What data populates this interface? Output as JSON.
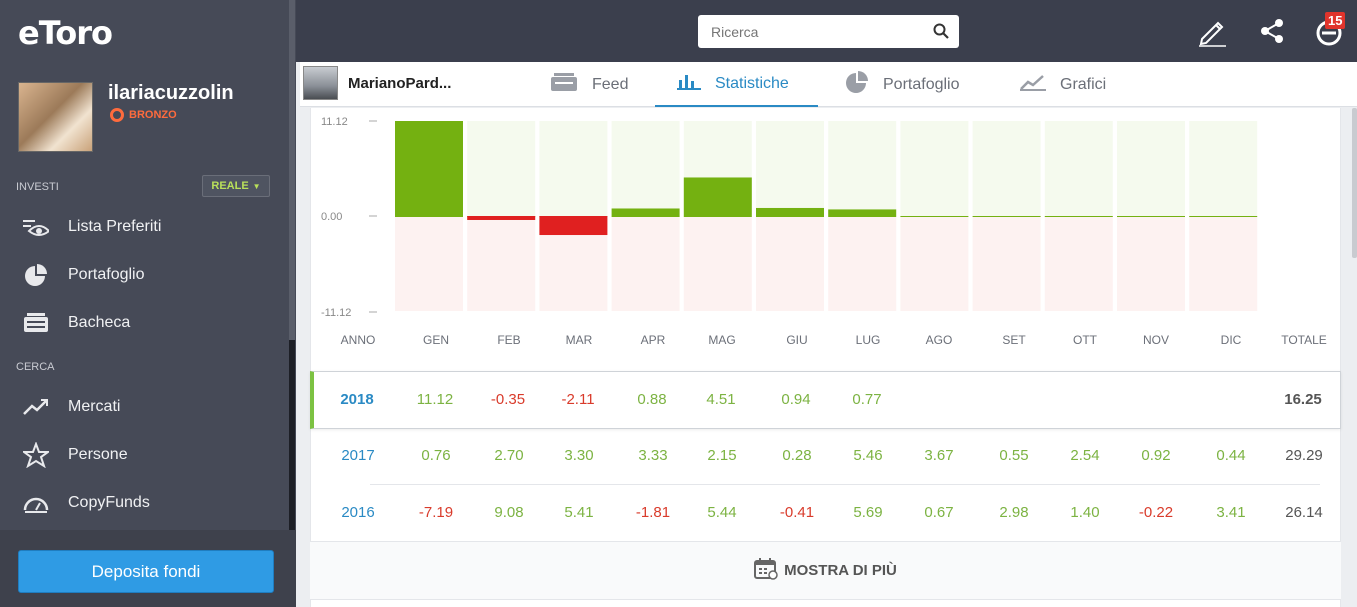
{
  "sidebar": {
    "logo": "eToro",
    "username": "ilariacuzzolin",
    "tier": "BRONZO",
    "invest_label": "INVESTI",
    "account_mode": "REALE",
    "search_label": "CERCA",
    "items": [
      {
        "label": "Lista Preferiti",
        "icon": "eye-icon"
      },
      {
        "label": "Portafoglio",
        "icon": "pie-chart-icon"
      },
      {
        "label": "Bacheca",
        "icon": "news-icon"
      },
      {
        "label": "Mercati",
        "icon": "trend-icon"
      },
      {
        "label": "Persone",
        "icon": "star-icon"
      },
      {
        "label": "CopyFunds",
        "icon": "gauge-icon"
      }
    ],
    "deposit_label": "Deposita fondi"
  },
  "topbar": {
    "search_placeholder": "Ricerca",
    "notification_count": "15"
  },
  "tabs": {
    "profile_name": "MarianoPard...",
    "items": [
      {
        "label": "Feed",
        "active": false
      },
      {
        "label": "Statistiche",
        "active": true
      },
      {
        "label": "Portafoglio",
        "active": false
      },
      {
        "label": "Grafici",
        "active": false
      }
    ]
  },
  "chart_data": {
    "type": "bar",
    "categories": [
      "GEN",
      "FEB",
      "MAR",
      "APR",
      "MAG",
      "GIU",
      "LUG",
      "AGO",
      "SET",
      "OTT",
      "NOV",
      "DIC"
    ],
    "values": [
      11.12,
      -0.35,
      -2.11,
      0.88,
      4.51,
      0.94,
      0.77,
      null,
      null,
      null,
      null,
      null
    ],
    "ylim": [
      -11.12,
      11.12
    ],
    "ytick_labels": [
      "11.12",
      "0.00",
      "-11.12"
    ],
    "colors": {
      "positive": "#74b111",
      "negative": "#e02020",
      "pos_bg": "#f5faee",
      "neg_bg": "#fdf2f1"
    }
  },
  "table": {
    "headers": [
      "ANNO",
      "GEN",
      "FEB",
      "MAR",
      "APR",
      "MAG",
      "GIU",
      "LUG",
      "AGO",
      "SET",
      "OTT",
      "NOV",
      "DIC",
      "TOTALE"
    ],
    "rows": [
      {
        "year": "2018",
        "values": [
          "11.12",
          "-0.35",
          "-2.11",
          "0.88",
          "4.51",
          "0.94",
          "0.77",
          "",
          "",
          "",
          "",
          ""
        ],
        "total": "16.25"
      },
      {
        "year": "2017",
        "values": [
          "0.76",
          "2.70",
          "3.30",
          "3.33",
          "2.15",
          "0.28",
          "5.46",
          "3.67",
          "0.55",
          "2.54",
          "0.92",
          "0.44"
        ],
        "total": "29.29"
      },
      {
        "year": "2016",
        "values": [
          "-7.19",
          "9.08",
          "5.41",
          "-1.81",
          "5.44",
          "-0.41",
          "5.69",
          "0.67",
          "2.98",
          "1.40",
          "-0.22",
          "3.41"
        ],
        "total": "26.14"
      }
    ],
    "more_label": "MOSTRA DI PIÙ"
  }
}
